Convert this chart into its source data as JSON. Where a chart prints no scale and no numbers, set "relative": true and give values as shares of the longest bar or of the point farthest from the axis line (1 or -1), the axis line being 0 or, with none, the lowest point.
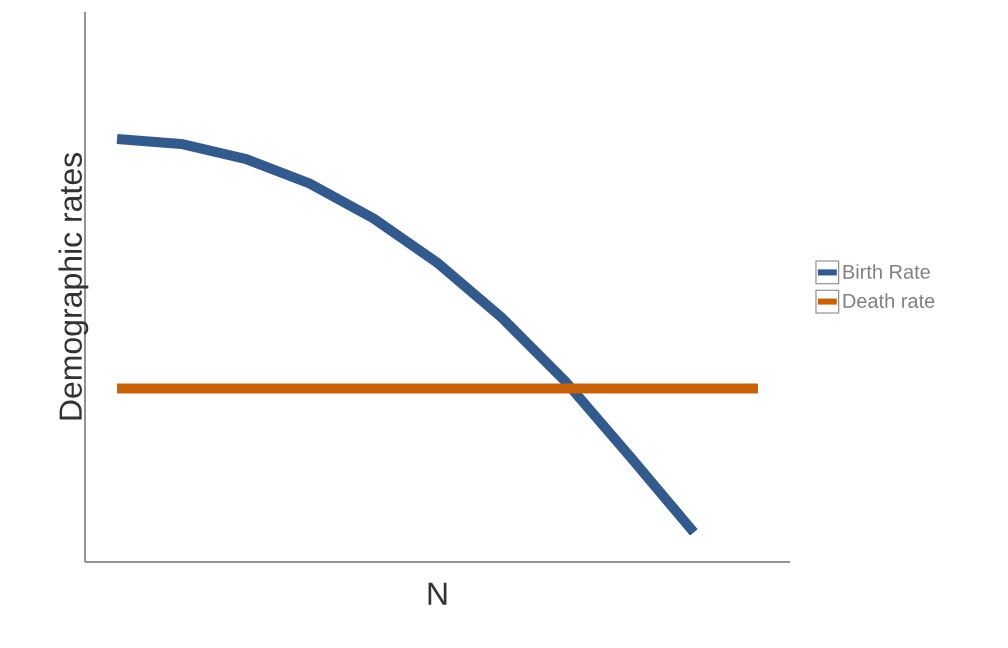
{
  "chart_data": {
    "type": "line",
    "relative": true,
    "xlabel": "N",
    "ylabel": "Demographic rates",
    "categories": [
      null,
      null,
      null,
      null,
      null,
      null,
      null,
      null,
      null,
      null,
      null
    ],
    "series": [
      {
        "name": "Birth Rate",
        "color": "#335a8c",
        "values": [
          1.0,
          0.988,
          0.953,
          0.895,
          0.812,
          0.707,
          0.578,
          0.426,
          0.25,
          0.07,
          null
        ]
      },
      {
        "name": "Death rate",
        "color": "#c8620a",
        "values": [
          0.41,
          0.41,
          0.41,
          0.41,
          0.41,
          0.41,
          0.41,
          0.41,
          0.41,
          0.41,
          0.41
        ]
      }
    ],
    "legend": "right",
    "marker": "none",
    "line_style": "solid"
  }
}
